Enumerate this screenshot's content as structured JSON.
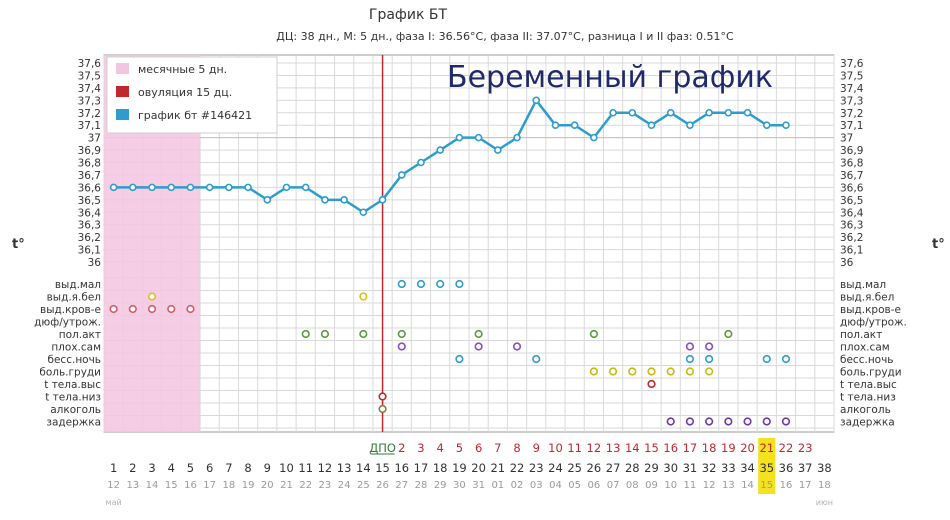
{
  "chart_data": {
    "type": "line",
    "title": "График БТ",
    "subtitle": "ДЦ: 38 дн., М: 5 дн., фаза I: 36.56°C, фаза II: 37.07°C, разница I и II фаз: 0.51°C",
    "watermark": "Беременный график",
    "ylabel_left": "t°",
    "ylabel_right": "t°",
    "ylim": [
      36.0,
      37.6
    ],
    "yticks": [
      "37,6",
      "37,5",
      "37,4",
      "37,3",
      "37,2",
      "37,1",
      "37",
      "36,9",
      "36,8",
      "36,7",
      "36,6",
      "36,5",
      "36,4",
      "36,3",
      "36,2",
      "36,1",
      "36"
    ],
    "legend": [
      {
        "label": "месячные 5 дн.",
        "color": "#f3c6e0"
      },
      {
        "label": "овуляция 15 дц.",
        "color": "#c0282d"
      },
      {
        "label": "график бт #146421",
        "color": "#2e9ccc"
      }
    ],
    "cycle_days": [
      "1",
      "2",
      "3",
      "4",
      "5",
      "6",
      "7",
      "8",
      "9",
      "10",
      "11",
      "12",
      "13",
      "14",
      "15",
      "16",
      "17",
      "18",
      "19",
      "20",
      "21",
      "22",
      "23",
      "24",
      "25",
      "26",
      "27",
      "28",
      "29",
      "30",
      "31",
      "32",
      "33",
      "34",
      "35",
      "36",
      "37",
      "38"
    ],
    "dpo_labels": [
      "ДПО",
      "2",
      "3",
      "4",
      "5",
      "6",
      "7",
      "8",
      "9",
      "10",
      "11",
      "12",
      "13",
      "14",
      "15",
      "16",
      "17",
      "18",
      "19",
      "20",
      "21",
      "22",
      "23"
    ],
    "dates": [
      "12",
      "13",
      "14",
      "15",
      "16",
      "17",
      "18",
      "19",
      "20",
      "21",
      "22",
      "23",
      "24",
      "25",
      "26",
      "27",
      "28",
      "29",
      "30",
      "31",
      "01",
      "02",
      "03",
      "04",
      "05",
      "06",
      "07",
      "08",
      "09",
      "10",
      "11",
      "12",
      "13",
      "14",
      "15",
      "16",
      "17",
      "18"
    ],
    "month_labels": [
      "май",
      "июн"
    ],
    "highlight_dpo": "21",
    "highlight_cycle_day": "36",
    "highlight_date": "16",
    "menstruation_days": [
      1,
      5
    ],
    "ovulation_day": 15,
    "series": [
      {
        "name": "график бт #146421",
        "color": "#2e9ccc",
        "x": [
          1,
          2,
          3,
          4,
          5,
          6,
          7,
          8,
          9,
          10,
          11,
          12,
          13,
          14,
          15,
          16,
          17,
          18,
          19,
          20,
          21,
          22,
          23,
          24,
          25,
          26,
          27,
          28,
          29,
          30,
          31,
          32,
          33,
          34,
          35,
          36
        ],
        "values": [
          36.6,
          36.6,
          36.6,
          36.6,
          36.6,
          36.6,
          36.6,
          36.6,
          36.5,
          36.6,
          36.6,
          36.5,
          36.5,
          36.4,
          36.5,
          36.7,
          36.8,
          36.9,
          37.0,
          37.0,
          36.9,
          37.0,
          37.3,
          37.1,
          37.1,
          37.0,
          37.2,
          37.2,
          37.1,
          37.2,
          37.1,
          37.2,
          37.2,
          37.2,
          37.1,
          37.1
        ]
      }
    ],
    "symptom_rows": [
      {
        "label": "выд.мал",
        "color": "#2e9ccc",
        "days": [
          16,
          17,
          18,
          19
        ]
      },
      {
        "label": "выд.я.бел",
        "color": "#d6c21a",
        "days": [
          3,
          14
        ]
      },
      {
        "label": "выд.кров-е",
        "color": "#d85a68",
        "days": [
          1,
          2,
          3,
          4,
          5
        ]
      },
      {
        "label": "дюф/утрож.",
        "color": "#d85a68",
        "days": []
      },
      {
        "label": "пол.акт",
        "color": "#5a9c3a",
        "days": [
          11,
          12,
          14,
          16,
          20,
          26,
          33
        ]
      },
      {
        "label": "плох.сам",
        "color": "#8a4cc0",
        "days": [
          16,
          20,
          22,
          31,
          32
        ]
      },
      {
        "label": "бесс.ночь",
        "color": "#2e9ccc",
        "days": [
          19,
          23,
          31,
          32,
          35,
          36
        ]
      },
      {
        "label": "боль.груди",
        "color": "#c8b812",
        "days": [
          26,
          27,
          28,
          29,
          30,
          31,
          32
        ]
      },
      {
        "label": "t тела.выс",
        "color": "#c0282d",
        "days": [
          29
        ]
      },
      {
        "label": "t тела.низ",
        "color": "#c0282d",
        "days": [
          15
        ]
      },
      {
        "label": "алкоголь",
        "color": "#8a7a3a",
        "days": [
          15
        ]
      },
      {
        "label": "задержка",
        "color": "#6a3aa0",
        "days": [
          30,
          31,
          32,
          33,
          34,
          35,
          36
        ]
      }
    ]
  }
}
